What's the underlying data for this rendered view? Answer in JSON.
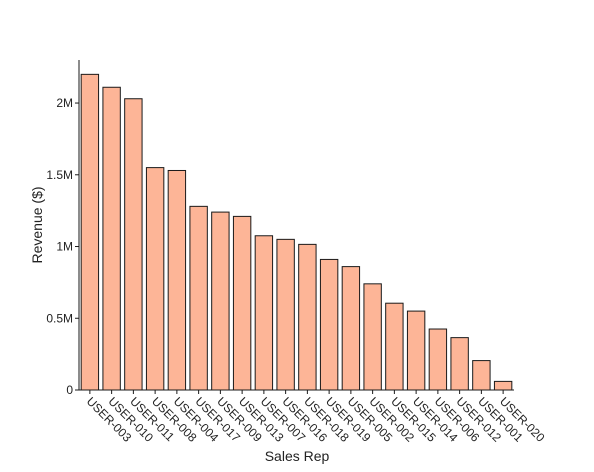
{
  "chart_data": {
    "type": "bar",
    "title": "",
    "xlabel": "Sales Rep",
    "ylabel": "Revenue ($)",
    "categories": [
      "USER-003",
      "USER-010",
      "USER-011",
      "USER-008",
      "USER-004",
      "USER-017",
      "USER-009",
      "USER-013",
      "USER-007",
      "USER-016",
      "USER-018",
      "USER-019",
      "USER-005",
      "USER-002",
      "USER-015",
      "USER-014",
      "USER-006",
      "USER-012",
      "USER-001",
      "USER-020"
    ],
    "values": [
      2200000,
      2110000,
      2030000,
      1550000,
      1530000,
      1280000,
      1240000,
      1210000,
      1075000,
      1050000,
      1015000,
      910000,
      860000,
      740000,
      605000,
      550000,
      425000,
      365000,
      205000,
      60000
    ],
    "ylim": [
      0,
      2300000
    ],
    "yticks": [
      0,
      500000,
      1000000,
      1500000,
      2000000
    ],
    "ytick_labels": [
      "0",
      "0.5M",
      "1M",
      "1.5M",
      "2M"
    ],
    "bar_color": "#fdb597",
    "bar_edge_color": "#1a1a1a",
    "grid": false,
    "legend": "none"
  }
}
